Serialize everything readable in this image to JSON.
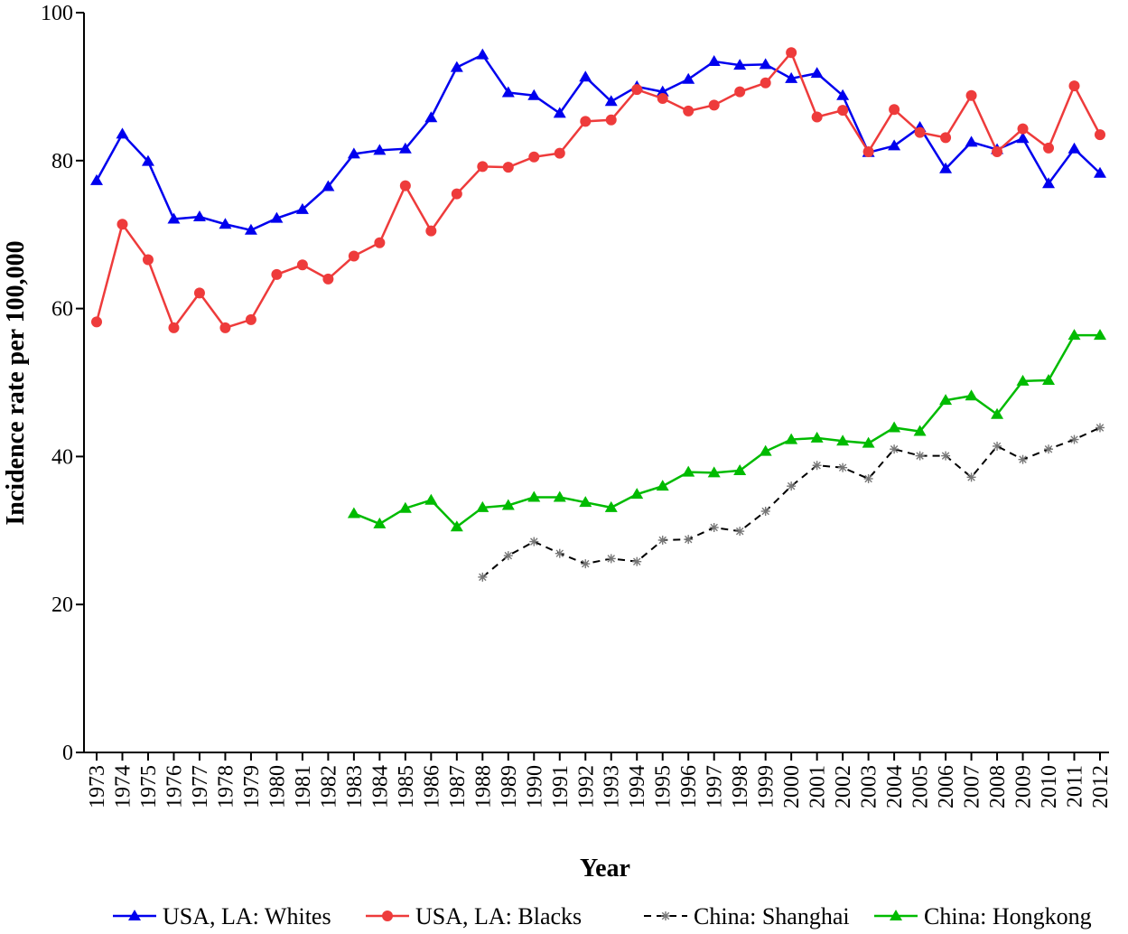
{
  "chart_data": {
    "type": "line",
    "xlabel": "Year",
    "ylabel": "Incidence rate per 100,000",
    "ylim": [
      0,
      100
    ],
    "yticks": [
      "0",
      "20",
      "40",
      "60",
      "80",
      "100"
    ],
    "categories": [
      "1973",
      "1974",
      "1975",
      "1976",
      "1977",
      "1978",
      "1979",
      "1980",
      "1981",
      "1982",
      "1983",
      "1984",
      "1985",
      "1986",
      "1987",
      "1988",
      "1989",
      "1990",
      "1991",
      "1992",
      "1993",
      "1994",
      "1995",
      "1996",
      "1997",
      "1998",
      "1999",
      "2000",
      "2001",
      "2002",
      "2003",
      "2004",
      "2005",
      "2006",
      "2007",
      "2008",
      "2009",
      "2010",
      "2011",
      "2012"
    ],
    "legend_position": "bottom",
    "series": [
      {
        "name": "USA, LA: Whites",
        "color": "#0000ee",
        "marker": "triangle",
        "dash": "solid",
        "values": [
          77.3,
          83.6,
          79.9,
          72.1,
          72.4,
          71.4,
          70.6,
          72.2,
          73.4,
          76.5,
          80.9,
          81.4,
          81.6,
          85.8,
          92.6,
          94.3,
          89.2,
          88.8,
          86.4,
          91.3,
          88.0,
          90.0,
          89.3,
          91.0,
          93.4,
          92.9,
          93.0,
          91.1,
          91.8,
          88.8,
          81.1,
          82.0,
          84.5,
          78.9,
          82.5,
          81.5,
          83.0,
          76.9,
          81.6,
          78.3
        ]
      },
      {
        "name": "USA, LA: Blacks",
        "color": "#ee3b3b",
        "marker": "circle",
        "dash": "solid",
        "values": [
          58.2,
          71.4,
          66.6,
          57.4,
          62.1,
          57.4,
          58.5,
          64.6,
          65.9,
          64.0,
          67.1,
          68.9,
          76.6,
          70.5,
          75.5,
          79.2,
          79.1,
          80.5,
          81.0,
          85.3,
          85.5,
          89.6,
          88.4,
          86.7,
          87.5,
          89.3,
          90.5,
          94.6,
          85.9,
          86.8,
          81.2,
          86.9,
          83.8,
          83.1,
          88.8,
          81.2,
          84.3,
          81.7,
          90.1,
          83.5
        ]
      },
      {
        "name": "China: Shanghai",
        "color": "#000000",
        "marker": "star",
        "dash": "dashed",
        "values": [
          null,
          null,
          null,
          null,
          null,
          null,
          null,
          null,
          null,
          null,
          null,
          null,
          null,
          null,
          null,
          23.7,
          26.6,
          28.5,
          26.9,
          25.5,
          26.2,
          25.8,
          28.7,
          28.8,
          30.4,
          29.9,
          32.6,
          36.0,
          38.8,
          38.5,
          37.0,
          41.0,
          40.1,
          40.1,
          37.2,
          41.4,
          39.6,
          41.0,
          42.3,
          43.9
        ]
      },
      {
        "name": "China: Hongkong",
        "color": "#00bb00",
        "marker": "triangle",
        "dash": "solid",
        "values": [
          null,
          null,
          null,
          null,
          null,
          null,
          null,
          null,
          null,
          null,
          32.3,
          30.9,
          33.0,
          34.1,
          30.5,
          33.1,
          33.4,
          34.5,
          34.5,
          33.8,
          33.1,
          34.9,
          36.0,
          37.9,
          37.8,
          38.1,
          40.7,
          42.3,
          42.5,
          42.1,
          41.8,
          43.9,
          43.4,
          47.6,
          48.2,
          45.7,
          50.2,
          50.3,
          56.4,
          56.4
        ]
      }
    ]
  }
}
